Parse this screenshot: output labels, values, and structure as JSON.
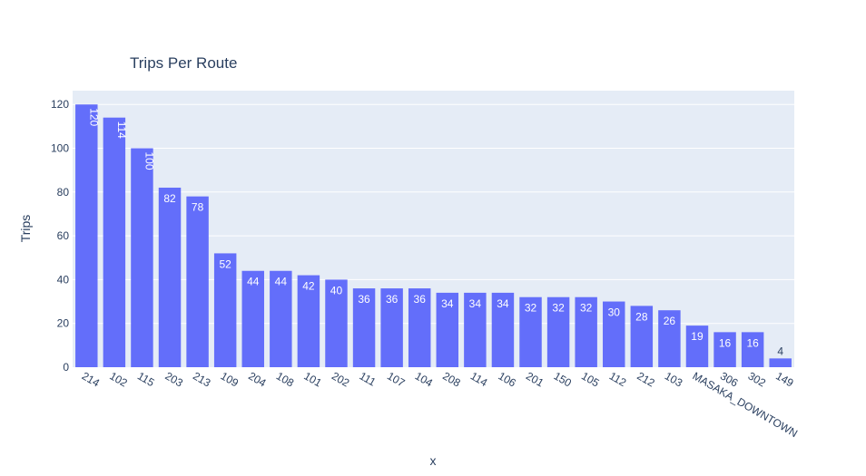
{
  "chart_data": {
    "type": "bar",
    "title": "Trips Per Route",
    "xlabel": "x",
    "ylabel": "Trips",
    "categories": [
      "214",
      "102",
      "115",
      "203",
      "213",
      "109",
      "204",
      "108",
      "101",
      "202",
      "111",
      "107",
      "104",
      "208",
      "114",
      "106",
      "201",
      "150",
      "105",
      "112",
      "212",
      "103",
      "MASAKA_DOWNTOWN",
      "306",
      "302",
      "149"
    ],
    "values": [
      120,
      114,
      100,
      82,
      78,
      52,
      44,
      44,
      42,
      40,
      36,
      36,
      36,
      34,
      34,
      34,
      32,
      32,
      32,
      30,
      28,
      26,
      19,
      16,
      16,
      4
    ],
    "ylim": [
      0,
      126.3
    ],
    "yticks": [
      0,
      20,
      40,
      60,
      80,
      100,
      120
    ],
    "grid": true,
    "colors": {
      "bar": "#636efa",
      "plot_bg": "#e5ecf6",
      "grid": "#ffffff",
      "text": "#2a3f5f"
    }
  }
}
